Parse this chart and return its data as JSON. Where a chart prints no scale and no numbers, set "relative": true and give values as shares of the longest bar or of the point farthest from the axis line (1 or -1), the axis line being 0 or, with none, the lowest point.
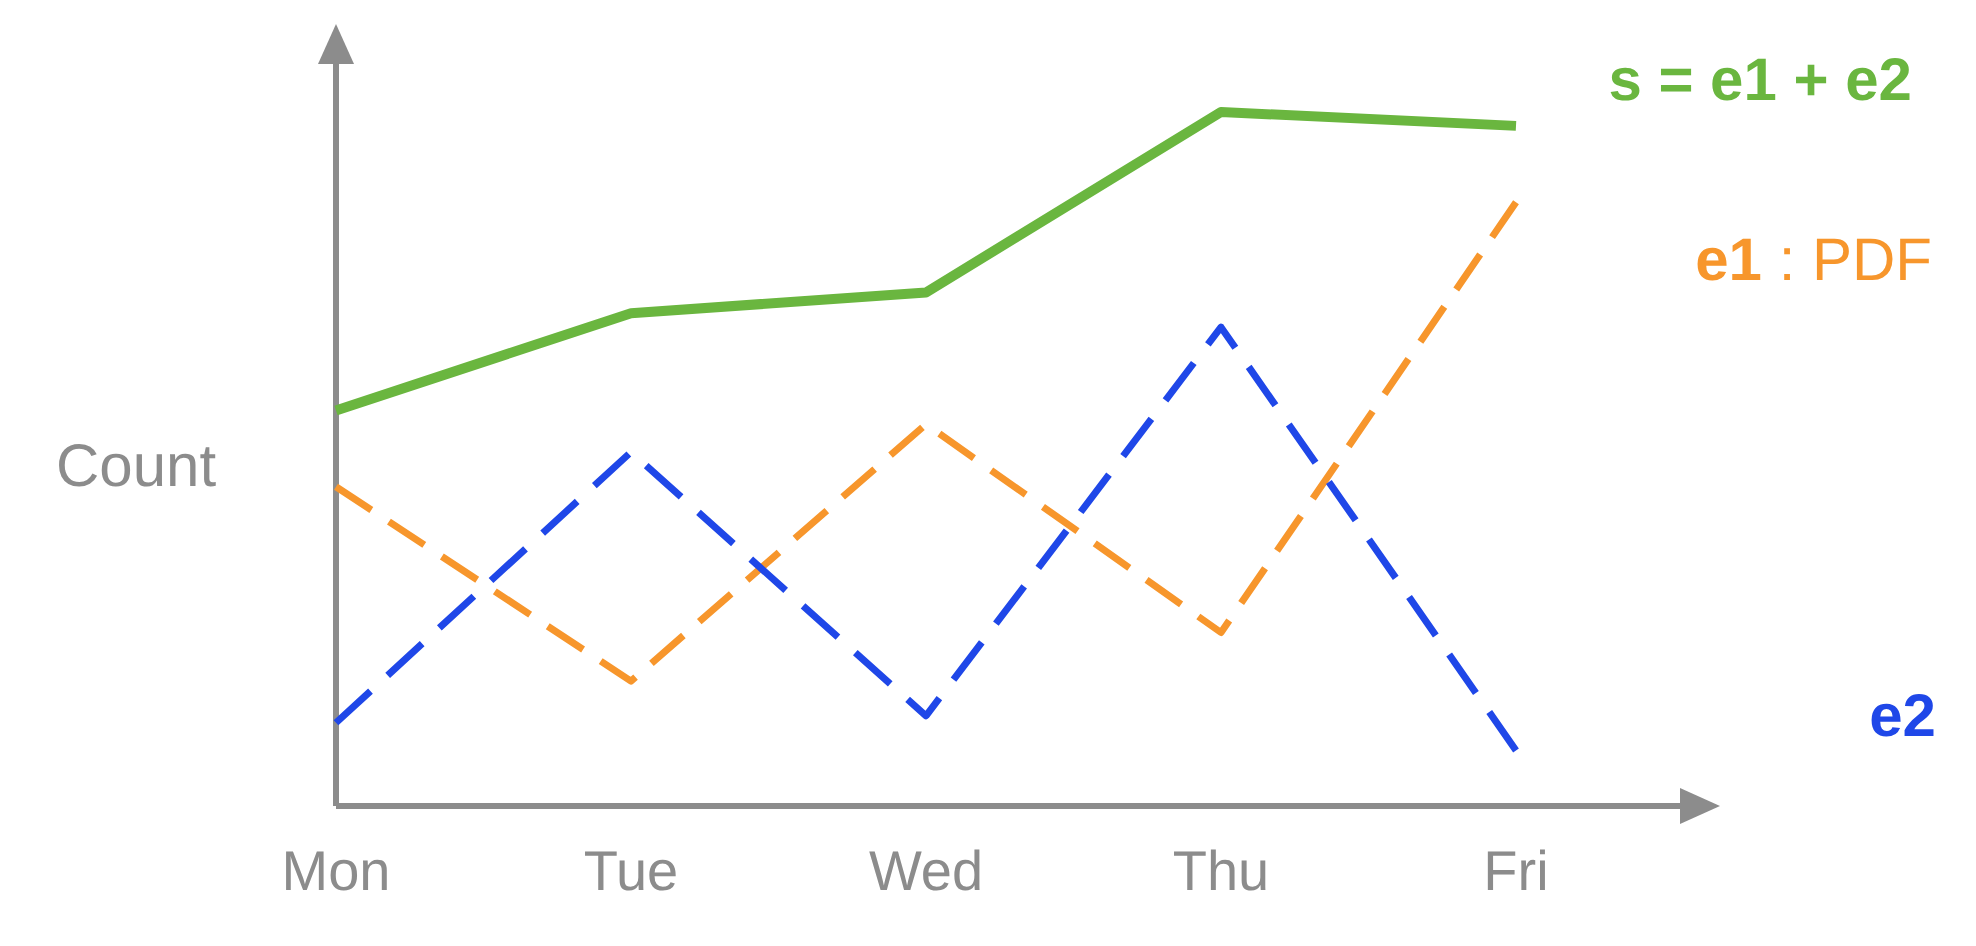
{
  "chart_data": {
    "type": "line",
    "relative": true,
    "ylabel": "Count",
    "categories": [
      "Mon",
      "Tue",
      "Wed",
      "Thu",
      "Fri"
    ],
    "series": [
      {
        "name": "s = e1 + e2",
        "color": "#6ab63f",
        "line_style": "solid",
        "values": [
          0.57,
          0.71,
          0.74,
          1,
          0.98
        ]
      },
      {
        "name": "e1 : PDF",
        "color": "#f7962c",
        "line_style": "dashed",
        "values": [
          0.46,
          0.18,
          0.55,
          0.25,
          0.87
        ]
      },
      {
        "name": "e2",
        "color": "#1f47e8",
        "line_style": "dashed",
        "values": [
          0.12,
          0.51,
          0.13,
          0.69,
          0.08
        ]
      }
    ]
  }
}
